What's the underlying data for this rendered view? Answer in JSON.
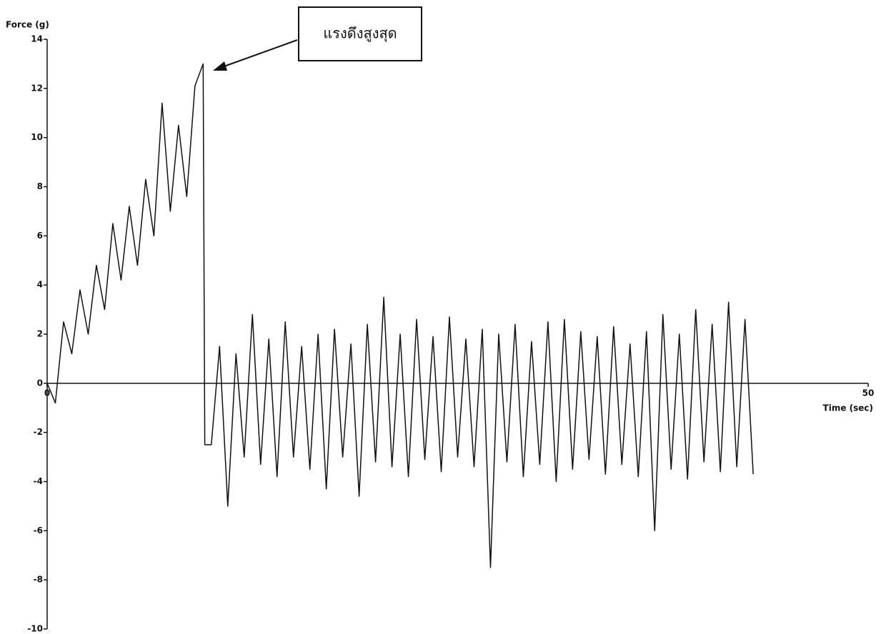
{
  "chart_data": {
    "type": "line",
    "y_label": "Force (g)",
    "x_label": "Time (sec)",
    "annotation": "แรงดึงสูงสุด",
    "x": [
      0,
      0.5,
      1,
      1.5,
      2,
      2.5,
      3,
      3.5,
      4,
      4.5,
      5,
      5.5,
      6,
      6.5,
      7,
      7.5,
      8,
      8.5,
      9,
      9.5,
      9.6,
      10,
      10.5,
      11,
      11.5,
      12,
      12.5,
      13,
      13.5,
      14,
      14.5,
      15,
      15.5,
      16,
      16.5,
      17,
      17.5,
      18,
      18.5,
      19,
      19.5,
      20,
      20.5,
      21,
      21.5,
      22,
      22.5,
      23,
      23.5,
      24,
      24.5,
      25,
      25.5,
      26,
      26.5,
      27,
      27.5,
      28,
      28.5,
      29,
      29.5,
      30,
      30.5,
      31,
      31.5,
      32,
      32.5,
      33,
      33.5,
      34,
      34.5,
      35,
      35.5,
      36,
      36.5,
      37,
      37.5,
      38,
      38.5,
      39,
      39.5,
      40,
      40.5,
      41,
      41.5,
      42,
      42.5,
      43
    ],
    "series": [
      {
        "color": "#111111",
        "values": [
          0,
          -0.8,
          2.5,
          1.2,
          3.8,
          2.0,
          4.8,
          3.0,
          6.5,
          4.2,
          7.2,
          4.8,
          8.3,
          6.0,
          11.4,
          7.0,
          10.5,
          7.6,
          12.1,
          13.0,
          -2.5,
          -2.5,
          1.5,
          -5.0,
          1.2,
          -3.0,
          2.8,
          -3.3,
          1.8,
          -3.8,
          2.5,
          -3.0,
          1.5,
          -3.5,
          2.0,
          -4.3,
          2.2,
          -3.0,
          1.6,
          -4.6,
          2.4,
          -3.2,
          3.5,
          -3.4,
          2.0,
          -3.8,
          2.6,
          -3.1,
          1.9,
          -3.6,
          2.7,
          -3.0,
          1.8,
          -3.4,
          2.2,
          -7.5,
          2.0,
          -3.2,
          2.4,
          -3.8,
          1.7,
          -3.3,
          2.5,
          -4.0,
          2.6,
          -3.5,
          2.1,
          -3.1,
          1.9,
          -3.7,
          2.3,
          -3.3,
          1.6,
          -3.8,
          2.1,
          -6.0,
          2.8,
          -3.5,
          2.0,
          -3.9,
          3.0,
          -3.2,
          2.4,
          -3.6,
          3.3,
          -3.4,
          2.6,
          -3.7
        ]
      }
    ],
    "xlim": [
      0,
      50
    ],
    "xticks": [
      0,
      50
    ],
    "ylim": [
      -10,
      14
    ],
    "yticks": [
      14,
      12,
      10,
      8,
      6,
      4,
      2,
      0,
      -2,
      -4,
      -6,
      -8,
      -10
    ]
  }
}
